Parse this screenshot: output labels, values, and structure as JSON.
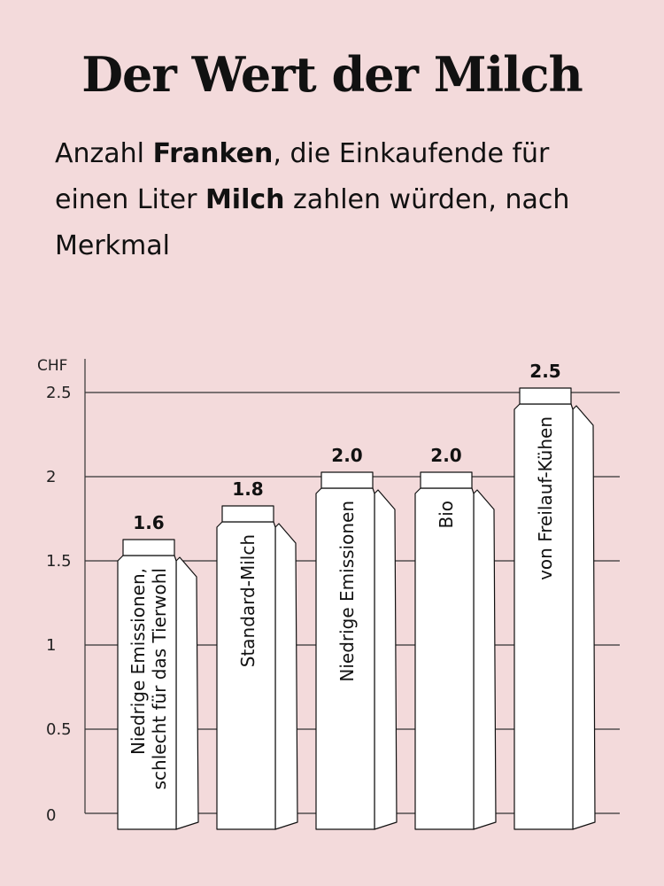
{
  "title": "Der Wert der Milch",
  "subtitle": {
    "p1": "Anzahl ",
    "b1": "Franken",
    "p2": ", die Einkaufende für einen Liter ",
    "b2": "Milch",
    "p3": " zahlen würden, nach Merkmal"
  },
  "chart_data": {
    "type": "bar",
    "unit_label": "CHF",
    "ylim": [
      0,
      2.5
    ],
    "yticks": [
      "0",
      "0.5",
      "1",
      "1.5",
      "2",
      "2.5"
    ],
    "grid": true,
    "categories": [
      [
        "Niedrige Emissionen,",
        "schlecht für das Tierwohl"
      ],
      [
        "Standard-Milch"
      ],
      [
        "Niedrige Emissionen"
      ],
      [
        "Bio"
      ],
      [
        "von Freilauf-Kühen"
      ]
    ],
    "values": [
      1.6,
      1.8,
      2.0,
      2.0,
      2.5
    ],
    "value_labels": [
      "1.6",
      "1.8",
      "2.0",
      "2.0",
      "2.5"
    ],
    "colors": {
      "background": "#f3dadb",
      "carton": "#ffffff",
      "stroke": "#111111",
      "grid": "#333333"
    }
  }
}
